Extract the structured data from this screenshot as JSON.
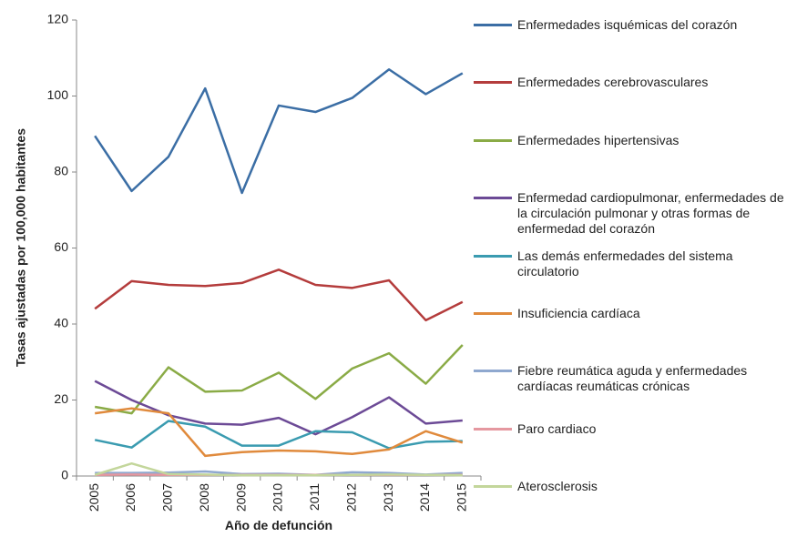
{
  "chart_data": {
    "type": "line",
    "ylabel": "Tasas ajustadas por 100,000 habitantes",
    "xlabel": "Año de defunción",
    "categories": [
      "2005",
      "2006",
      "2007",
      "2008",
      "2009",
      "2010",
      "2011",
      "2012",
      "2013",
      "2014",
      "2015"
    ],
    "ylim": [
      0,
      120
    ],
    "yticks": [
      0,
      20,
      40,
      60,
      80,
      100,
      120
    ],
    "grid": false,
    "legend": "right",
    "series": [
      {
        "name": "Enfermedades isquémicas del corazón",
        "color": "#3b6ea5",
        "values": [
          89.5,
          75,
          84,
          102,
          74.5,
          97.5,
          95.8,
          99.5,
          107,
          100.5,
          106
        ]
      },
      {
        "name": "Enfermedades cerebrovasculares",
        "color": "#b43c3c",
        "values": [
          44,
          51.3,
          50.3,
          50,
          50.8,
          54.3,
          50.3,
          49.5,
          51.5,
          41,
          45.8
        ]
      },
      {
        "name": "Enfermedades hipertensivas",
        "color": "#8aab46",
        "values": [
          18.2,
          16.5,
          28.6,
          22.2,
          22.5,
          27.2,
          20.3,
          28.3,
          32.3,
          24.3,
          34.5
        ]
      },
      {
        "name": "Enfermedad cardiopulmonar, enfermedades de la circulación pulmonar y otras formas de enfermedad del corazón",
        "color": "#6c4a96",
        "values": [
          25,
          20,
          16,
          13.8,
          13.5,
          15.3,
          11,
          15.5,
          20.7,
          13.8,
          14.6
        ]
      },
      {
        "name": "Las demás enfermedades del sistema circulatorio",
        "color": "#3a9bb0",
        "values": [
          9.5,
          7.5,
          14.5,
          13,
          8,
          8,
          11.8,
          11.5,
          7.3,
          9,
          9.2
        ]
      },
      {
        "name": "Insuficiencia cardíaca",
        "color": "#e08a3c",
        "values": [
          16.5,
          17.8,
          16.5,
          5.3,
          6.3,
          6.7,
          6.5,
          5.8,
          7,
          11.8,
          8.8
        ]
      },
      {
        "name": "Fiebre reumática aguda y enfermedades cardíacas reumáticas crónicas",
        "color": "#8fa8cf",
        "values": [
          0.8,
          0.8,
          0.9,
          1.2,
          0.5,
          0.6,
          0.3,
          1,
          0.8,
          0.4,
          0.8
        ]
      },
      {
        "name": "Paro cardiaco",
        "color": "#e598a0",
        "values": [
          0.3,
          0.4,
          0.3,
          0.3,
          0.3,
          0.3,
          0.3,
          0.3,
          0.3,
          0.3,
          0.3
        ]
      },
      {
        "name": "Aterosclerosis",
        "color": "#c3d69b",
        "values": [
          0.3,
          3.3,
          0.5,
          0.4,
          0.2,
          0.2,
          0.2,
          0.3,
          0.4,
          0.3,
          0.2
        ]
      }
    ]
  }
}
